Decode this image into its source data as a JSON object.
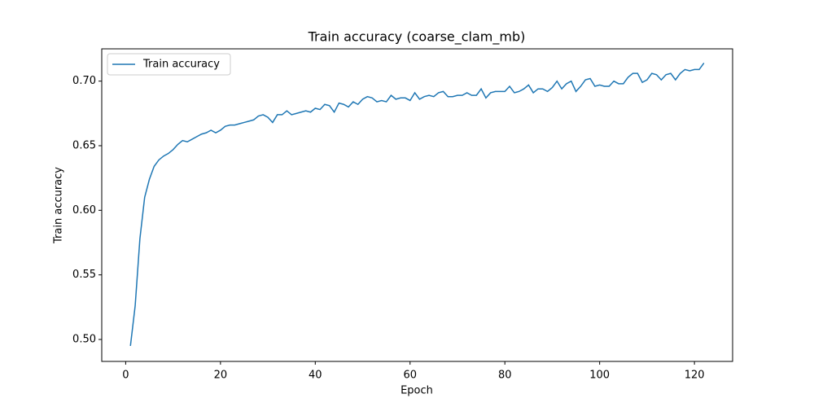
{
  "chart_data": {
    "type": "line",
    "title": "Train accuracy (coarse_clam_mb)",
    "x_label": "Epoch",
    "y_label": "Train accuracy",
    "x": [
      1,
      2,
      3,
      4,
      5,
      6,
      7,
      8,
      9,
      10,
      11,
      12,
      13,
      14,
      15,
      16,
      17,
      18,
      19,
      20,
      21,
      22,
      23,
      24,
      25,
      26,
      27,
      28,
      29,
      30,
      31,
      32,
      33,
      34,
      35,
      36,
      37,
      38,
      39,
      40,
      41,
      42,
      43,
      44,
      45,
      46,
      47,
      48,
      49,
      50,
      51,
      52,
      53,
      54,
      55,
      56,
      57,
      58,
      59,
      60,
      61,
      62,
      63,
      64,
      65,
      66,
      67,
      68,
      69,
      70,
      71,
      72,
      73,
      74,
      75,
      76,
      77,
      78,
      79,
      80,
      81,
      82,
      83,
      84,
      85,
      86,
      87,
      88,
      89,
      90,
      91,
      92,
      93,
      94,
      95,
      96,
      97,
      98,
      99,
      100,
      101,
      102,
      103,
      104,
      105,
      106,
      107,
      108,
      109,
      110,
      111,
      112,
      113,
      114,
      115,
      116,
      117,
      118,
      119,
      120,
      121,
      122
    ],
    "series": [
      {
        "name": "Train accuracy",
        "color": "#1f77b4",
        "values": [
          0.495,
          0.526,
          0.578,
          0.61,
          0.624,
          0.634,
          0.639,
          0.642,
          0.644,
          0.647,
          0.651,
          0.654,
          0.653,
          0.655,
          0.657,
          0.659,
          0.66,
          0.662,
          0.66,
          0.662,
          0.665,
          0.666,
          0.666,
          0.667,
          0.668,
          0.669,
          0.67,
          0.673,
          0.674,
          0.672,
          0.668,
          0.674,
          0.674,
          0.677,
          0.674,
          0.675,
          0.676,
          0.677,
          0.676,
          0.679,
          0.678,
          0.682,
          0.681,
          0.676,
          0.683,
          0.682,
          0.68,
          0.684,
          0.682,
          0.686,
          0.688,
          0.687,
          0.684,
          0.685,
          0.684,
          0.689,
          0.686,
          0.687,
          0.687,
          0.685,
          0.691,
          0.686,
          0.688,
          0.689,
          0.688,
          0.691,
          0.692,
          0.688,
          0.688,
          0.689,
          0.689,
          0.691,
          0.689,
          0.689,
          0.694,
          0.687,
          0.691,
          0.692,
          0.692,
          0.692,
          0.696,
          0.691,
          0.692,
          0.694,
          0.697,
          0.691,
          0.694,
          0.694,
          0.692,
          0.695,
          0.7,
          0.694,
          0.698,
          0.7,
          0.692,
          0.696,
          0.701,
          0.702,
          0.696,
          0.697,
          0.696,
          0.696,
          0.7,
          0.698,
          0.698,
          0.703,
          0.706,
          0.706,
          0.699,
          0.701,
          0.706,
          0.705,
          0.701,
          0.705,
          0.706,
          0.701,
          0.706,
          0.709,
          0.708,
          0.709,
          0.709,
          0.714
        ]
      }
    ],
    "xlim": [
      -5.05,
      128.05
    ],
    "ylim": [
      0.483,
      0.725
    ],
    "xticks": [
      0,
      20,
      40,
      60,
      80,
      100,
      120
    ],
    "yticks": [
      {
        "value": 0.5,
        "label": "0.50"
      },
      0.55,
      {
        "value": 0.6,
        "label": "0.60"
      },
      0.65,
      {
        "value": 0.7,
        "label": "0.70"
      }
    ],
    "legend": "upper left",
    "grid": false
  }
}
